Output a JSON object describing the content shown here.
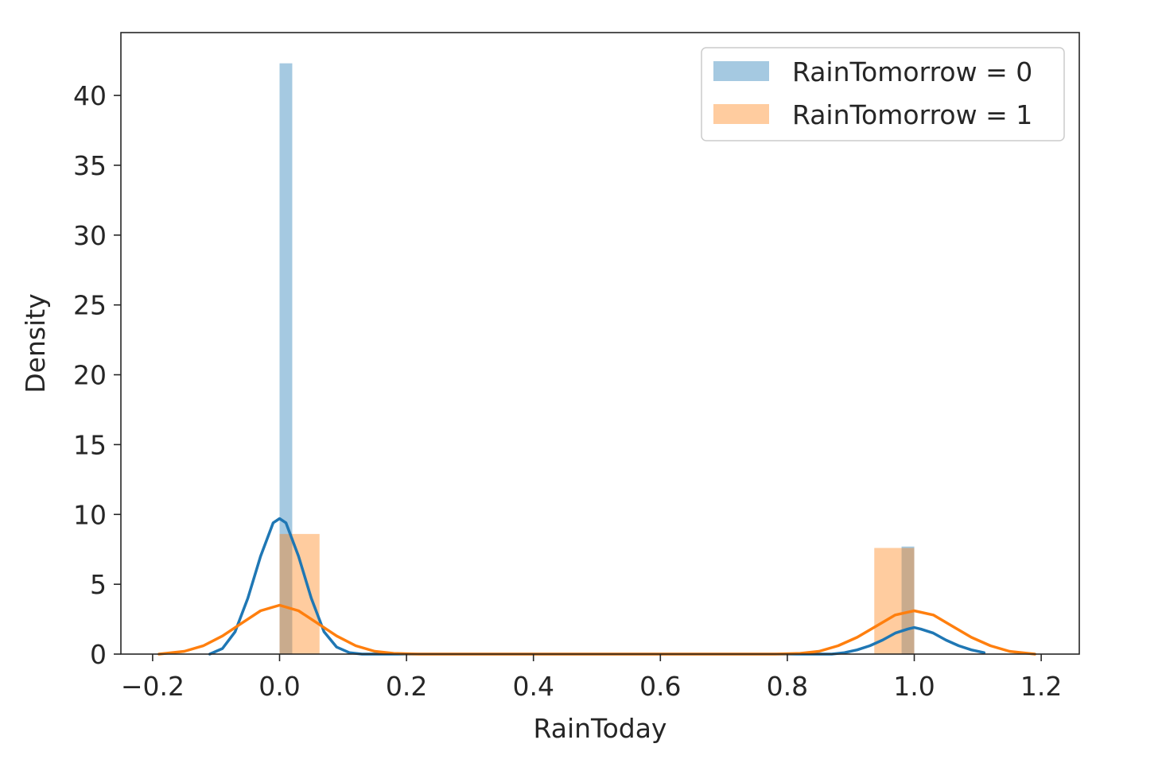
{
  "chart_data": {
    "type": "bar",
    "title": "",
    "xlabel": "RainToday",
    "ylabel": "Density",
    "xlim": [
      -0.25,
      1.26
    ],
    "ylim": [
      0,
      44.5
    ],
    "xticks": [
      -0.2,
      0.0,
      0.2,
      0.4,
      0.6,
      0.8,
      1.0,
      1.2
    ],
    "xtick_labels": [
      "−0.2",
      "0.0",
      "0.2",
      "0.4",
      "0.6",
      "0.8",
      "1.0",
      "1.2"
    ],
    "yticks": [
      0,
      5,
      10,
      15,
      20,
      25,
      30,
      35,
      40
    ],
    "ytick_labels": [
      "0",
      "5",
      "10",
      "15",
      "20",
      "25",
      "30",
      "35",
      "40"
    ],
    "grid": false,
    "legend_position": "top-right",
    "series": [
      {
        "name": "RainTomorrow = 0",
        "color": "#1f77b4",
        "histogram": [
          {
            "x0": 0.0,
            "x1": 0.02,
            "density": 42.3
          },
          {
            "x0": 0.98,
            "x1": 1.0,
            "density": 7.7
          }
        ],
        "kde": [
          [
            -0.11,
            0.0
          ],
          [
            -0.09,
            0.4
          ],
          [
            -0.07,
            1.6
          ],
          [
            -0.05,
            4.0
          ],
          [
            -0.03,
            7.0
          ],
          [
            -0.01,
            9.4
          ],
          [
            0.0,
            9.7
          ],
          [
            0.01,
            9.4
          ],
          [
            0.03,
            7.0
          ],
          [
            0.05,
            4.0
          ],
          [
            0.07,
            1.6
          ],
          [
            0.09,
            0.5
          ],
          [
            0.11,
            0.1
          ],
          [
            0.13,
            0.0
          ],
          [
            0.2,
            0.0
          ],
          [
            0.4,
            0.0
          ],
          [
            0.6,
            0.0
          ],
          [
            0.8,
            0.0
          ],
          [
            0.87,
            0.0
          ],
          [
            0.89,
            0.1
          ],
          [
            0.91,
            0.3
          ],
          [
            0.93,
            0.6
          ],
          [
            0.95,
            1.0
          ],
          [
            0.97,
            1.5
          ],
          [
            0.99,
            1.8
          ],
          [
            1.0,
            1.9
          ],
          [
            1.01,
            1.8
          ],
          [
            1.03,
            1.5
          ],
          [
            1.05,
            1.0
          ],
          [
            1.07,
            0.6
          ],
          [
            1.09,
            0.3
          ],
          [
            1.11,
            0.1
          ]
        ]
      },
      {
        "name": "RainTomorrow = 1",
        "color": "#ff7f0e",
        "histogram": [
          {
            "x0": 0.0,
            "x1": 0.063,
            "density": 8.6
          },
          {
            "x0": 0.937,
            "x1": 1.0,
            "density": 7.6
          }
        ],
        "kde": [
          [
            -0.19,
            0.0
          ],
          [
            -0.15,
            0.2
          ],
          [
            -0.12,
            0.6
          ],
          [
            -0.09,
            1.3
          ],
          [
            -0.06,
            2.2
          ],
          [
            -0.03,
            3.1
          ],
          [
            0.0,
            3.5
          ],
          [
            0.03,
            3.1
          ],
          [
            0.06,
            2.2
          ],
          [
            0.09,
            1.3
          ],
          [
            0.12,
            0.6
          ],
          [
            0.15,
            0.2
          ],
          [
            0.18,
            0.05
          ],
          [
            0.22,
            0.0
          ],
          [
            0.4,
            0.0
          ],
          [
            0.6,
            0.0
          ],
          [
            0.78,
            0.0
          ],
          [
            0.82,
            0.05
          ],
          [
            0.85,
            0.2
          ],
          [
            0.88,
            0.6
          ],
          [
            0.91,
            1.2
          ],
          [
            0.94,
            2.0
          ],
          [
            0.97,
            2.8
          ],
          [
            1.0,
            3.1
          ],
          [
            1.03,
            2.8
          ],
          [
            1.06,
            2.0
          ],
          [
            1.09,
            1.2
          ],
          [
            1.12,
            0.6
          ],
          [
            1.15,
            0.2
          ],
          [
            1.19,
            0.0
          ]
        ]
      }
    ]
  }
}
